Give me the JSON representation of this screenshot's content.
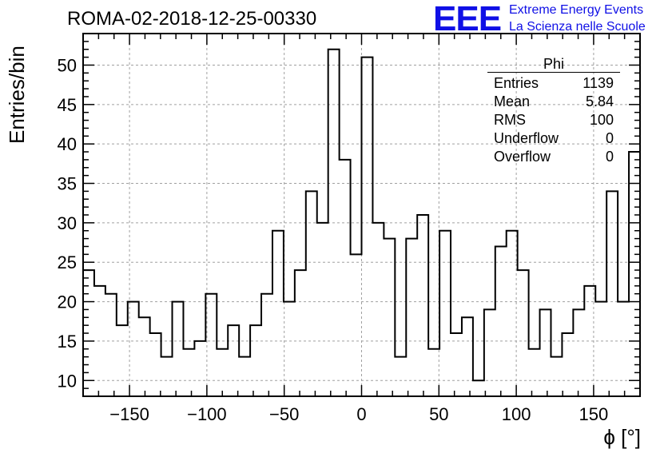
{
  "chart_data": {
    "type": "histogram",
    "title": "ROMA-02-2018-12-25-00330",
    "xlabel": "ϕ [°]",
    "ylabel": "Entries/bin",
    "xlim": [
      -180,
      180
    ],
    "ylim": [
      8,
      54
    ],
    "bin_width": 7.2,
    "grid": true,
    "x_ticks": [
      -150,
      -100,
      -50,
      0,
      50,
      100,
      150
    ],
    "y_ticks": [
      10,
      15,
      20,
      25,
      30,
      35,
      40,
      45,
      50
    ],
    "values": [
      24,
      22,
      21,
      17,
      20,
      18,
      16,
      13,
      20,
      14,
      15,
      21,
      14,
      17,
      13,
      17,
      21,
      29,
      20,
      24,
      34,
      30,
      52,
      38,
      26,
      51,
      30,
      28,
      13,
      28,
      31,
      14,
      29,
      16,
      18,
      10,
      19,
      27,
      29,
      24,
      14,
      19,
      13,
      16,
      19,
      22,
      20,
      34,
      20,
      39
    ],
    "stats": {
      "name": "Phi",
      "rows": [
        {
          "label": "Entries",
          "value": "1139"
        },
        {
          "label": "Mean",
          "value": "5.84"
        },
        {
          "label": "RMS",
          "value": "100"
        },
        {
          "label": "Underflow",
          "value": "0"
        },
        {
          "label": "Overflow",
          "value": "0"
        }
      ]
    }
  },
  "logo": {
    "mark": "EEE",
    "line1": "Extreme Energy Events",
    "line2": "La Scienza nelle Scuole"
  },
  "colors": {
    "logo": "#1010e6",
    "grid": "#a0a0a0",
    "line": "#000000"
  }
}
